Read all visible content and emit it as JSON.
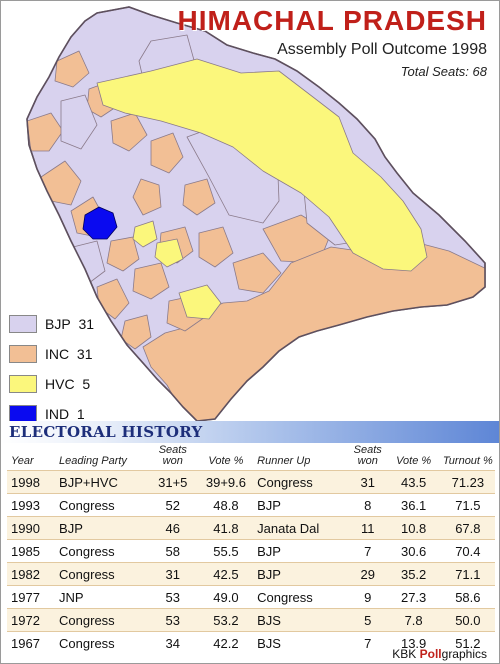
{
  "header": {
    "title": "HIMACHAL PRADESH",
    "subtitle": "Assembly Poll Outcome 1998",
    "total_seats": "Total Seats: 68"
  },
  "colors": {
    "bjp": "#d8d2ee",
    "inc": "#f2bf95",
    "hvc": "#fbf77c",
    "ind": "#0a0af0",
    "border": "#8a7a8a"
  },
  "legend": [
    {
      "party": "BJP",
      "seats": "31",
      "color": "#d8d2ee"
    },
    {
      "party": "INC",
      "seats": "31",
      "color": "#f2bf95"
    },
    {
      "party": "HVC",
      "seats": "5",
      "color": "#fbf77c"
    },
    {
      "party": "IND",
      "seats": "1",
      "color": "#0a0af0"
    }
  ],
  "history": {
    "title": "ELECTORAL HISTORY",
    "columns": {
      "year": "Year",
      "leading_party": "Leading Party",
      "seats_won": "Seats won",
      "vote": "Vote %",
      "runner_up": "Runner Up",
      "runner_seats": "Seats won",
      "runner_vote": "Vote %",
      "turnout": "Turnout %"
    },
    "rows": [
      {
        "year": "1998",
        "party": "BJP+HVC",
        "seats": "31+5",
        "vote": "39+9.6",
        "runner": "Congress",
        "rseats": "31",
        "rvote": "43.5",
        "turnout": "71.23"
      },
      {
        "year": "1993",
        "party": "Congress",
        "seats": "52",
        "vote": "48.8",
        "runner": "BJP",
        "rseats": "8",
        "rvote": "36.1",
        "turnout": "71.5"
      },
      {
        "year": "1990",
        "party": "BJP",
        "seats": "46",
        "vote": "41.8",
        "runner": "Janata Dal",
        "rseats": "11",
        "rvote": "10.8",
        "turnout": "67.8"
      },
      {
        "year": "1985",
        "party": "Congress",
        "seats": "58",
        "vote": "55.5",
        "runner": "BJP",
        "rseats": "7",
        "rvote": "30.6",
        "turnout": "70.4"
      },
      {
        "year": "1982",
        "party": "Congress",
        "seats": "31",
        "vote": "42.5",
        "runner": "BJP",
        "rseats": "29",
        "rvote": "35.2",
        "turnout": "71.1"
      },
      {
        "year": "1977",
        "party": "JNP",
        "seats": "53",
        "vote": "49.0",
        "runner": "Congress",
        "rseats": "9",
        "rvote": "27.3",
        "turnout": "58.6"
      },
      {
        "year": "1972",
        "party": "Congress",
        "seats": "53",
        "vote": "53.2",
        "runner": "BJS",
        "rseats": "5",
        "rvote": "7.8",
        "turnout": "50.0"
      },
      {
        "year": "1967",
        "party": "Congress",
        "seats": "34",
        "vote": "42.2",
        "runner": "BJS",
        "rseats": "7",
        "rvote": "13.9",
        "turnout": "51.2"
      }
    ]
  },
  "footer": {
    "prefix": "KBK ",
    "highlight": "Poll",
    "suffix": "graphics"
  }
}
